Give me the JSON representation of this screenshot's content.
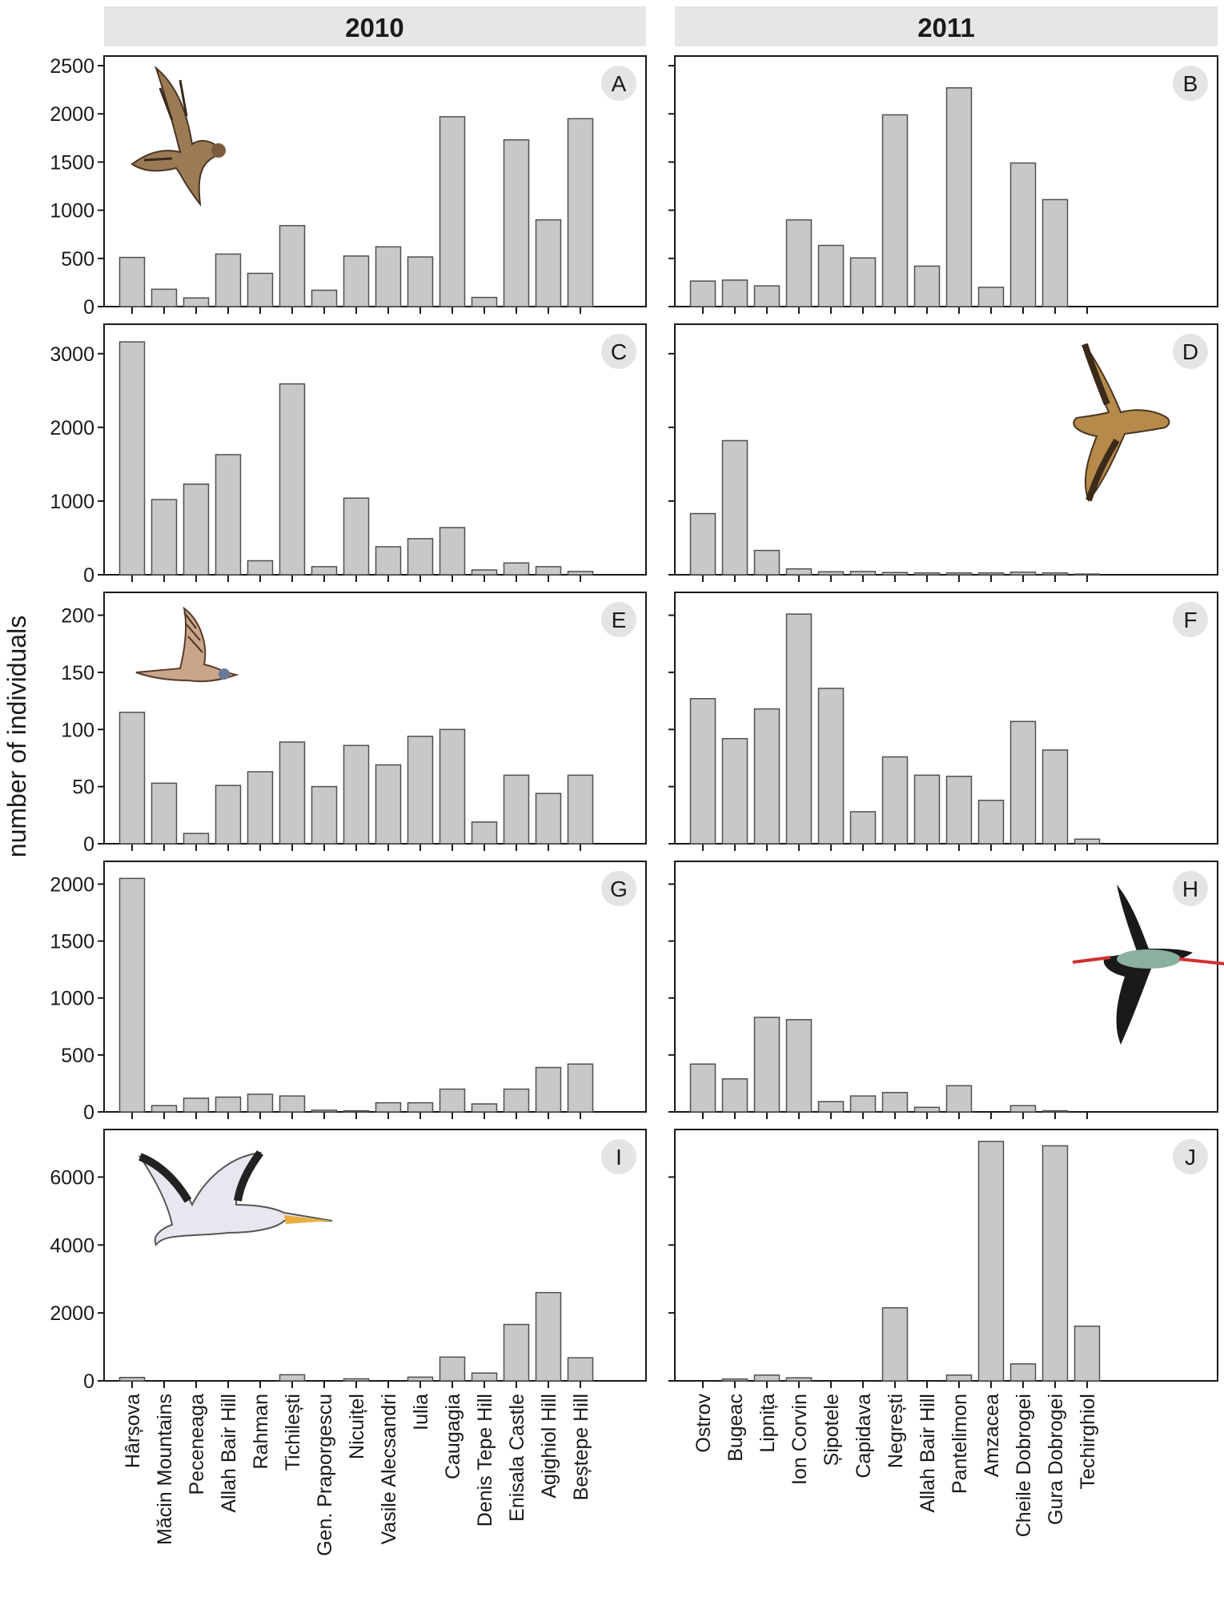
{
  "column_titles": [
    "2010",
    "2011"
  ],
  "ylabel": "number of individuals",
  "colors": {
    "bar_fill": "#c8c8c8",
    "bar_stroke": "#505050",
    "header_bg": "#e6e6e6",
    "letter_bg": "#e4e4e4"
  },
  "chart_data": [
    {
      "type": "bar",
      "panel": "A",
      "year": "2010",
      "categories": [
        "Hârșova",
        "Măcin Mountains",
        "Peceneaga",
        "Allah Bair Hill",
        "Rahman",
        "Tichilești",
        "Gen. Praporgescu",
        "Nicuițel",
        "Vasile Alecsandri",
        "Iulia",
        "Caugagia",
        "Denis Tepe Hill",
        "Enisala Castle",
        "Agighiol Hill",
        "Beștepe Hill"
      ],
      "values": [
        510,
        180,
        90,
        545,
        345,
        840,
        170,
        525,
        620,
        515,
        1970,
        95,
        1730,
        900,
        1950
      ],
      "ylim": [
        0,
        2600
      ],
      "yticks": [
        0,
        500,
        1000,
        1500,
        2000,
        2500
      ]
    },
    {
      "type": "bar",
      "panel": "B",
      "year": "2011",
      "categories": [
        "Ostrov",
        "Bugeac",
        "Lipnița",
        "Ion Corvin",
        "Șipotele",
        "Capidava",
        "Negrești",
        "Allah Bair Hill",
        "Pantelimon",
        "Amzacea",
        "Cheile Dobrogei",
        "Gura Dobrogei",
        "Techirghiol"
      ],
      "values": [
        265,
        275,
        215,
        900,
        635,
        505,
        1990,
        420,
        2270,
        200,
        1490,
        1110,
        0
      ],
      "ylim": [
        0,
        2600
      ],
      "yticks": [
        0,
        500,
        1000,
        1500,
        2000,
        2500
      ]
    },
    {
      "type": "bar",
      "panel": "C",
      "year": "2010",
      "categories": [
        "Hârșova",
        "Măcin Mountains",
        "Peceneaga",
        "Allah Bair Hill",
        "Rahman",
        "Tichilești",
        "Gen. Praporgescu",
        "Nicuițel",
        "Vasile Alecsandri",
        "Iulia",
        "Caugagia",
        "Denis Tepe Hill",
        "Enisala Castle",
        "Agighiol Hill",
        "Beștepe Hill"
      ],
      "values": [
        3160,
        1020,
        1230,
        1630,
        190,
        2590,
        110,
        1040,
        380,
        490,
        640,
        65,
        160,
        110,
        45
      ],
      "ylim": [
        0,
        3400
      ],
      "yticks": [
        0,
        1000,
        2000,
        3000
      ]
    },
    {
      "type": "bar",
      "panel": "D",
      "year": "2011",
      "categories": [
        "Ostrov",
        "Bugeac",
        "Lipnița",
        "Ion Corvin",
        "Șipotele",
        "Capidava",
        "Negrești",
        "Allah Bair Hill",
        "Pantelimon",
        "Amzacea",
        "Cheile Dobrogei",
        "Gura Dobrogei",
        "Techirghiol"
      ],
      "values": [
        830,
        1820,
        330,
        80,
        40,
        45,
        30,
        25,
        25,
        25,
        35,
        25,
        10
      ],
      "ylim": [
        0,
        3400
      ],
      "yticks": [
        0,
        1000,
        2000,
        3000
      ]
    },
    {
      "type": "bar",
      "panel": "E",
      "year": "2010",
      "categories": [
        "Hârșova",
        "Măcin Mountains",
        "Peceneaga",
        "Allah Bair Hill",
        "Rahman",
        "Tichilești",
        "Gen. Praporgescu",
        "Nicuițel",
        "Vasile Alecsandri",
        "Iulia",
        "Caugagia",
        "Denis Tepe Hill",
        "Enisala Castle",
        "Agighiol Hill",
        "Beștepe Hill"
      ],
      "values": [
        115,
        53,
        9,
        51,
        63,
        89,
        50,
        86,
        69,
        94,
        100,
        19,
        60,
        44,
        60
      ],
      "ylim": [
        0,
        220
      ],
      "yticks": [
        0,
        50,
        100,
        150,
        200
      ]
    },
    {
      "type": "bar",
      "panel": "F",
      "year": "2011",
      "categories": [
        "Ostrov",
        "Bugeac",
        "Lipnița",
        "Ion Corvin",
        "Șipotele",
        "Capidava",
        "Negrești",
        "Allah Bair Hill",
        "Pantelimon",
        "Amzacea",
        "Cheile Dobrogei",
        "Gura Dobrogei",
        "Techirghiol"
      ],
      "values": [
        127,
        92,
        118,
        201,
        136,
        28,
        76,
        60,
        59,
        38,
        107,
        82,
        4
      ],
      "ylim": [
        0,
        220
      ],
      "yticks": [
        0,
        50,
        100,
        150,
        200
      ]
    },
    {
      "type": "bar",
      "panel": "G",
      "year": "2010",
      "categories": [
        "Hârșova",
        "Măcin Mountains",
        "Peceneaga",
        "Allah Bair Hill",
        "Rahman",
        "Tichilești",
        "Gen. Praporgescu",
        "Nicuițel",
        "Vasile Alecsandri",
        "Iulia",
        "Caugagia",
        "Denis Tepe Hill",
        "Enisala Castle",
        "Agighiol Hill",
        "Beștepe Hill"
      ],
      "values": [
        2050,
        55,
        120,
        130,
        155,
        140,
        15,
        10,
        80,
        80,
        200,
        70,
        200,
        390,
        420
      ],
      "ylim": [
        0,
        2200
      ],
      "yticks": [
        0,
        500,
        1000,
        1500,
        2000
      ]
    },
    {
      "type": "bar",
      "panel": "H",
      "year": "2011",
      "categories": [
        "Ostrov",
        "Bugeac",
        "Lipnița",
        "Ion Corvin",
        "Șipotele",
        "Capidava",
        "Negrești",
        "Allah Bair Hill",
        "Pantelimon",
        "Amzacea",
        "Cheile Dobrogei",
        "Gura Dobrogei",
        "Techirghiol"
      ],
      "values": [
        420,
        290,
        830,
        810,
        90,
        140,
        170,
        40,
        230,
        0,
        55,
        10,
        0
      ],
      "ylim": [
        0,
        2200
      ],
      "yticks": [
        0,
        500,
        1000,
        1500,
        2000
      ]
    },
    {
      "type": "bar",
      "panel": "I",
      "year": "2010",
      "categories": [
        "Hârșova",
        "Măcin Mountains",
        "Peceneaga",
        "Allah Bair Hill",
        "Rahman",
        "Tichilești",
        "Gen. Praporgescu",
        "Nicuițel",
        "Vasile Alecsandri",
        "Iulia",
        "Caugagia",
        "Denis Tepe Hill",
        "Enisala Castle",
        "Agighiol Hill",
        "Beștepe Hill"
      ],
      "values": [
        100,
        0,
        0,
        0,
        0,
        180,
        0,
        60,
        0,
        110,
        700,
        230,
        1660,
        2600,
        680
      ],
      "ylim": [
        0,
        7400
      ],
      "yticks": [
        0,
        2000,
        4000,
        6000
      ]
    },
    {
      "type": "bar",
      "panel": "J",
      "year": "2011",
      "categories": [
        "Ostrov",
        "Bugeac",
        "Lipnița",
        "Ion Corvin",
        "Șipotele",
        "Capidava",
        "Negrești",
        "Allah Bair Hill",
        "Pantelimon",
        "Amzacea",
        "Cheile Dobrogei",
        "Gura Dobrogei",
        "Techirghiol"
      ],
      "values": [
        0,
        55,
        170,
        90,
        0,
        0,
        2150,
        0,
        170,
        7050,
        500,
        6920,
        1610
      ],
      "ylim": [
        0,
        7400
      ],
      "yticks": [
        0,
        2000,
        4000,
        6000
      ]
    }
  ]
}
